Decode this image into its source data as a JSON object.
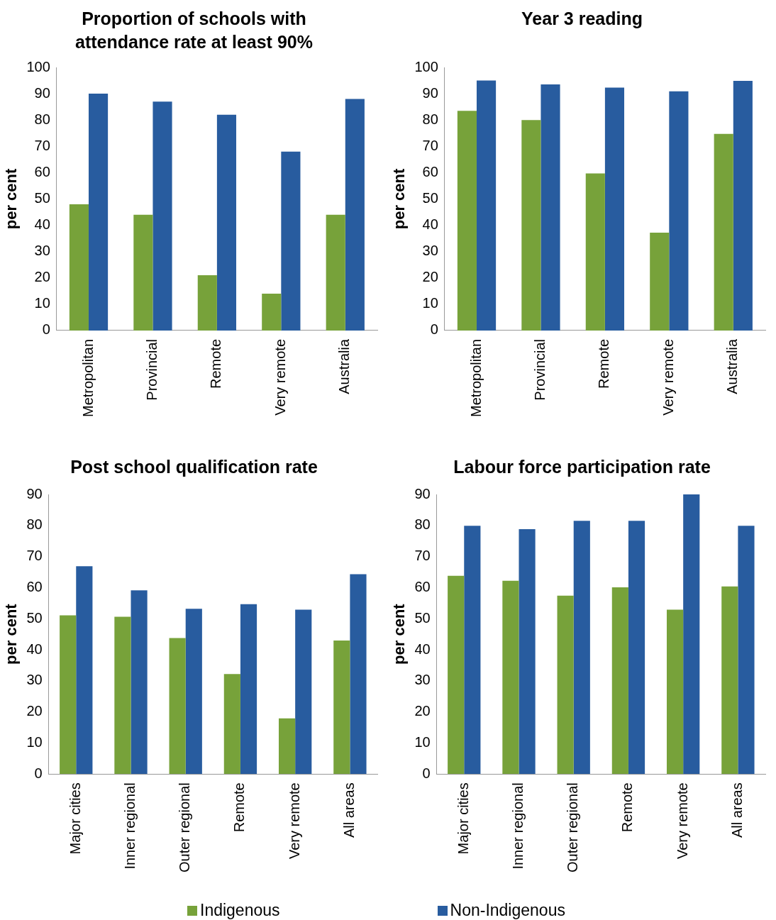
{
  "chart_data": [
    {
      "type": "bar",
      "title": "Proportion of schools with attendance rate at least 90%",
      "ylabel": "per cent",
      "categories": [
        "Metropolitan",
        "Provincial",
        "Remote",
        "Very remote",
        "Australia"
      ],
      "series": [
        {
          "name": "Indigenous",
          "color": "#77a23a",
          "values": [
            48,
            44,
            21,
            14,
            44
          ]
        },
        {
          "name": "Non-Indigenous",
          "color": "#285c9f",
          "values": [
            90,
            87,
            82,
            68,
            88
          ]
        }
      ],
      "ylim": [
        0,
        100
      ],
      "yticks": [
        0,
        10,
        20,
        30,
        40,
        50,
        60,
        70,
        80,
        90,
        100
      ],
      "legend": "bottom"
    },
    {
      "type": "bar",
      "title": "Year 3 reading",
      "ylabel": "per cent",
      "categories": [
        "Metropolitan",
        "Provincial",
        "Remote",
        "Very remote",
        "Australia"
      ],
      "series": [
        {
          "color": "#77a23a",
          "values": [
            83.5,
            80,
            59.7,
            37.2,
            74.7
          ]
        },
        {
          "color": "#285c9f",
          "values": [
            95,
            93.5,
            92.3,
            90.9,
            94.9
          ]
        }
      ],
      "ylim": [
        0,
        100
      ],
      "yticks": [
        0,
        10,
        20,
        30,
        40,
        50,
        60,
        70,
        80,
        90,
        100
      ]
    },
    {
      "type": "bar",
      "title": "Post school qualification rate",
      "ylabel": "per cent",
      "categories": [
        "Major cities",
        "Inner regional",
        "Outer regional",
        "Remote",
        "Very remote",
        "All areas"
      ],
      "series": [
        {
          "color": "#77a23a",
          "values": [
            51.1,
            50.6,
            43.8,
            32.2,
            17.9,
            43
          ]
        },
        {
          "color": "#285c9f",
          "values": [
            66.9,
            59.1,
            53.2,
            54.7,
            52.9,
            64.3
          ]
        }
      ],
      "ylim": [
        0,
        90
      ],
      "yticks": [
        0,
        10,
        20,
        30,
        40,
        50,
        60,
        70,
        80,
        90
      ]
    },
    {
      "type": "bar",
      "title": "Labour force participation rate",
      "ylabel": "per cent",
      "categories": [
        "Major cities",
        "Inner regional",
        "Outer regional",
        "Remote",
        "Very remote",
        "All areas"
      ],
      "series": [
        {
          "color": "#77a23a",
          "values": [
            63.8,
            62.2,
            57.4,
            60.1,
            52.9,
            60.4
          ]
        },
        {
          "color": "#285c9f",
          "values": [
            79.9,
            78.8,
            81.5,
            81.5,
            90,
            79.9
          ]
        }
      ],
      "ylim": [
        0,
        90
      ],
      "yticks": [
        0,
        10,
        20,
        30,
        40,
        50,
        60,
        70,
        80,
        90
      ]
    }
  ]
}
